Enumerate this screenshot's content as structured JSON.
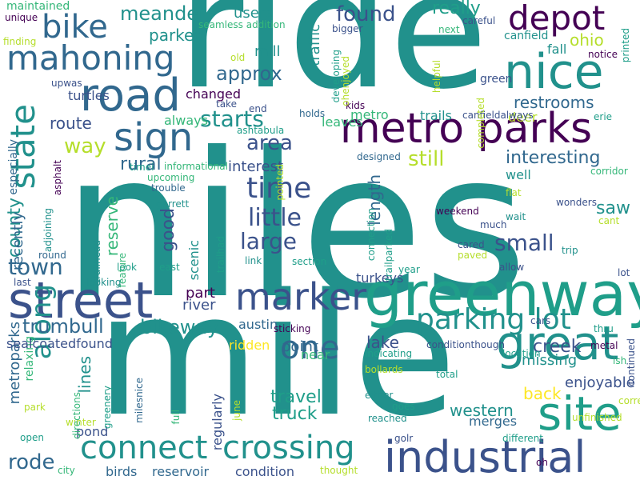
{
  "words": [
    "niles",
    "ride",
    "mile",
    "metro parks",
    "greenway",
    "street",
    "road",
    "nice",
    "industrial",
    "site",
    "great",
    "depot",
    "mahoning",
    "sign",
    "crossing",
    "connect",
    "bike",
    "marker",
    "along",
    "state",
    "time",
    "parking lot",
    "one",
    "trumbull",
    "bikeway",
    "county",
    "town",
    "rode",
    "large",
    "little",
    "good",
    "area",
    "small",
    "restrooms",
    "interesting",
    "approx",
    "still",
    "length",
    "reserve",
    "saw",
    "found",
    "meander",
    "users",
    "parked",
    "mill",
    "traffic",
    "really",
    "ohio",
    "fall",
    "route",
    "way",
    "starts",
    "rural",
    "interest",
    "western",
    "creek",
    "lake",
    "point",
    "travel",
    "truck",
    "back",
    "enjoyable",
    "missing",
    "pond",
    "merges",
    "lines",
    "river",
    "part",
    "changed",
    "always",
    "leaves",
    "metro",
    "trails",
    "deer",
    "well",
    "turkeys",
    "scenic",
    "austin",
    "ridden",
    "near",
    "regularly",
    "reservoir",
    "condition",
    "birds",
    "metroparks",
    "relaxing",
    "especially",
    "sealcoatedfound",
    "recently",
    "maintained",
    "turtles",
    "upwas",
    "unique",
    "finding",
    "seamless addition",
    "careful",
    "next",
    "bigger",
    "canfield",
    "printed",
    "green",
    "helpful",
    "notice",
    "old",
    "take",
    "holds",
    "kids",
    "end",
    "canfieldalways",
    "erie",
    "ashtabula",
    "developing",
    "ohenjoyed",
    "timei",
    "informational",
    "designed",
    "completed",
    "asphalt",
    "upcoming",
    "corridor",
    "trouble",
    "garrett",
    "adjoining",
    "trailhead",
    "trailhad",
    "round",
    "weekend",
    "flat",
    "wait",
    "wonders",
    "cant",
    "cared",
    "trip",
    "feature",
    "look",
    "looking",
    "east",
    "link",
    "section",
    "paved",
    "allow",
    "year",
    "last",
    "lot",
    "connection",
    "trailparked",
    "much",
    "pointed",
    "sticking",
    "cars",
    "conditionthough",
    "location",
    "metal",
    "ish",
    "continued",
    "indicating",
    "thru",
    "bollards",
    "total",
    "either",
    "goes",
    "correct",
    "reached",
    "different",
    "unfinished",
    "golr",
    "oh",
    "city",
    "winter",
    "park",
    "open",
    "directions",
    "greenery",
    "milesnice",
    "full",
    "june",
    "thought"
  ],
  "colors": {
    "dark_purple": "#440154",
    "indigo": "#3b528b",
    "slate": "#31688e",
    "teal": "#21918c",
    "teal_green": "#1f9e89",
    "green": "#35b779",
    "light_green": "#6ece58",
    "yellow_green": "#b5de2b",
    "yellow": "#fde725"
  }
}
